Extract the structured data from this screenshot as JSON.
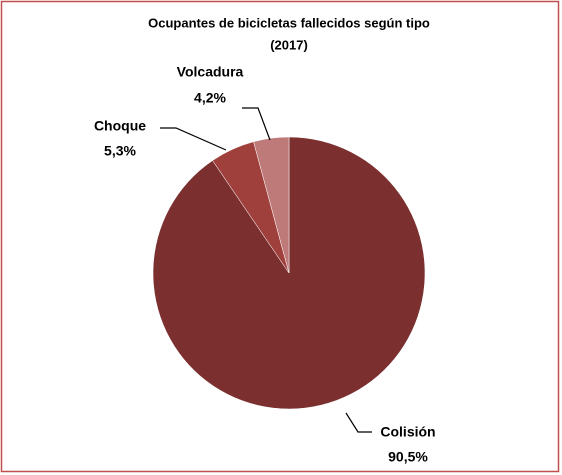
{
  "chart_data": {
    "type": "pie",
    "title": "Ocupantes de bicicletas fallecidos según tipo",
    "subtitle": "(2017)",
    "categories": [
      "Colisión",
      "Choque",
      "Volcadura"
    ],
    "values": [
      90.5,
      5.3,
      4.2
    ],
    "value_labels": [
      "90,5%",
      "5,3%",
      "4,2%"
    ],
    "colors": [
      "#7b2f2f",
      "#a0403c",
      "#bd7a79"
    ]
  }
}
